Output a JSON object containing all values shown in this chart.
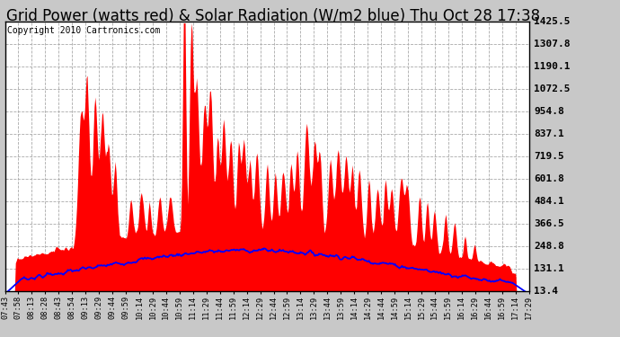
{
  "title": "Grid Power (watts red) & Solar Radiation (W/m2 blue) Thu Oct 28 17:38",
  "copyright": "Copyright 2010 Cartronics.com",
  "yticks": [
    13.4,
    131.1,
    248.8,
    366.5,
    484.1,
    601.8,
    719.5,
    837.1,
    954.8,
    1072.5,
    1190.1,
    1307.8,
    1425.5
  ],
  "ymin": 13.4,
  "ymax": 1425.5,
  "bg_color": "#c8c8c8",
  "plot_bg": "#ffffff",
  "grid_color": "#aaaaaa",
  "red_color": "#ff0000",
  "blue_color": "#0000ff",
  "title_fontsize": 12,
  "copyright_fontsize": 7,
  "tick_fontsize": 8,
  "xtick_labels": [
    "07:43",
    "07:58",
    "08:13",
    "08:28",
    "08:43",
    "08:54",
    "09:13",
    "09:29",
    "09:44",
    "09:59",
    "10:14",
    "10:29",
    "10:44",
    "10:59",
    "11:14",
    "11:29",
    "11:44",
    "11:59",
    "12:14",
    "12:29",
    "12:44",
    "12:59",
    "13:14",
    "13:29",
    "13:44",
    "13:59",
    "14:14",
    "14:29",
    "14:44",
    "14:59",
    "15:14",
    "15:29",
    "15:44",
    "15:59",
    "16:14",
    "16:29",
    "16:44",
    "16:59",
    "17:14",
    "17:29"
  ]
}
